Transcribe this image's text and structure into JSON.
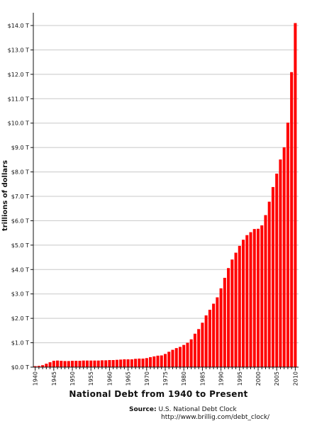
{
  "chart_data": {
    "type": "bar",
    "title": "National Debt from 1940 to Present",
    "ylabel": "trillions of dollars",
    "xlabel": "",
    "ylim": [
      0,
      14.0
    ],
    "grid": true,
    "bar_color": "#ff0000",
    "y_ticks": [
      "$0.0 T",
      "$1.0 T",
      "$2.0 T",
      "$3.0 T",
      "$4.0 T",
      "$5.0 T",
      "$6.0 T",
      "$7.0 T",
      "$8.0 T",
      "$9.0 T",
      "$10.0 T",
      "$11.0 T",
      "$12.0 T",
      "$13.0 T",
      "$14.0 T"
    ],
    "x_ticks": [
      "1940",
      "1945",
      "1950",
      "1955",
      "1960",
      "1965",
      "1970",
      "1975",
      "1980",
      "1985",
      "1990",
      "1995",
      "2000",
      "2005",
      "2010"
    ],
    "years": [
      1940,
      1941,
      1942,
      1943,
      1944,
      1945,
      1946,
      1947,
      1948,
      1949,
      1950,
      1951,
      1952,
      1953,
      1954,
      1955,
      1956,
      1957,
      1958,
      1959,
      1960,
      1961,
      1962,
      1963,
      1964,
      1965,
      1966,
      1967,
      1968,
      1969,
      1970,
      1971,
      1972,
      1973,
      1974,
      1975,
      1976,
      1977,
      1978,
      1979,
      1980,
      1981,
      1982,
      1983,
      1984,
      1985,
      1986,
      1987,
      1988,
      1989,
      1990,
      1991,
      1992,
      1993,
      1994,
      1995,
      1996,
      1997,
      1998,
      1999,
      2000,
      2001,
      2002,
      2003,
      2004,
      2005,
      2006,
      2007,
      2008,
      2009,
      2010
    ],
    "values": [
      0.04,
      0.05,
      0.08,
      0.14,
      0.2,
      0.26,
      0.27,
      0.26,
      0.25,
      0.25,
      0.26,
      0.26,
      0.26,
      0.27,
      0.27,
      0.27,
      0.27,
      0.27,
      0.28,
      0.28,
      0.29,
      0.29,
      0.3,
      0.31,
      0.32,
      0.32,
      0.32,
      0.34,
      0.35,
      0.35,
      0.37,
      0.41,
      0.44,
      0.47,
      0.48,
      0.54,
      0.63,
      0.71,
      0.78,
      0.83,
      0.91,
      1.0,
      1.14,
      1.37,
      1.56,
      1.82,
      2.12,
      2.35,
      2.6,
      2.86,
      3.23,
      3.66,
      4.06,
      4.41,
      4.69,
      4.97,
      5.22,
      5.41,
      5.53,
      5.66,
      5.67,
      5.81,
      6.23,
      6.78,
      7.38,
      7.93,
      8.51,
      9.01,
      10.02,
      12.09,
      14.1
    ]
  },
  "source": {
    "label": "Source:",
    "text": "U.S. National Debt Clock",
    "url": "http://www.brillig.com/debt_clock/"
  }
}
